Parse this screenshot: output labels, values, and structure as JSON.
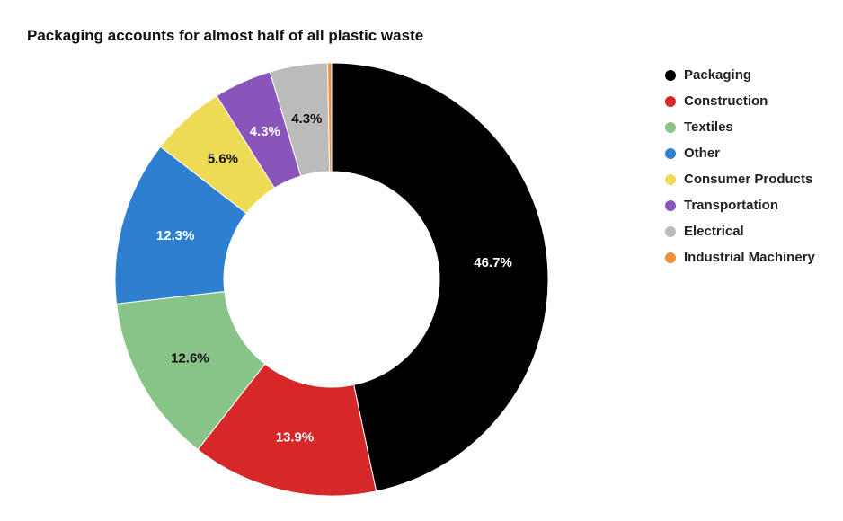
{
  "chart_data": {
    "type": "pie",
    "title": "Packaging accounts for almost half of all plastic waste",
    "legend_position": "right",
    "categories": [
      "Packaging",
      "Construction",
      "Textiles",
      "Other",
      "Consumer Products",
      "Transportation",
      "Electrical",
      "Industrial Machinery"
    ],
    "values": [
      46.7,
      13.9,
      12.6,
      12.3,
      5.6,
      4.3,
      4.3,
      0.3
    ],
    "labels": [
      "46.7%",
      "13.9%",
      "12.6%",
      "12.3%",
      "5.6%",
      "4.3%",
      "4.3%",
      ""
    ],
    "colors": [
      "#000000",
      "#d62828",
      "#88c488",
      "#2f7fd1",
      "#eedb55",
      "#8a55bb",
      "#bbbbbb",
      "#ee9040"
    ],
    "label_colors": [
      "#ffffff",
      "#ffffff",
      "#111111",
      "#ffffff",
      "#111111",
      "#ffffff",
      "#111111",
      "#111111"
    ]
  }
}
